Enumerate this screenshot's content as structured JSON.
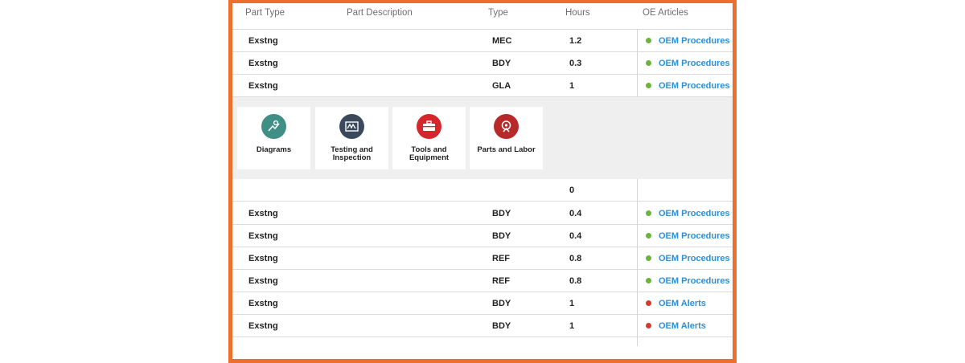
{
  "header": {
    "part_type": "Part Type",
    "part_description": "Part Description",
    "type": "Type",
    "hours": "Hours",
    "oe_articles": "OE Articles"
  },
  "rows_top": [
    {
      "part_type": "Exstng",
      "type": "MEC",
      "hours": "1.2",
      "article": "OEM Procedures",
      "status_color": "#6ab43a"
    },
    {
      "part_type": "Exstng",
      "type": "BDY",
      "hours": "0.3",
      "article": "OEM Procedures",
      "status_color": "#6ab43a"
    },
    {
      "part_type": "Exstng",
      "type": "GLA",
      "hours": "1",
      "article": "OEM Procedures",
      "status_color": "#6ab43a"
    }
  ],
  "cards": [
    {
      "label": "Diagrams",
      "icon": "diagram-icon",
      "color": "#3f8f86"
    },
    {
      "label": "Testing and Inspection",
      "icon": "testing-icon",
      "color": "#3a4a5c"
    },
    {
      "label": "Tools and Equipment",
      "icon": "toolbox-icon",
      "color": "#d6262b"
    },
    {
      "label": "Parts and Labor",
      "icon": "parts-labor-icon",
      "color": "#b82a2a"
    }
  ],
  "summary_row": {
    "hours": "0"
  },
  "rows_bottom": [
    {
      "part_type": "Exstng",
      "type": "BDY",
      "hours": "0.4",
      "article": "OEM Procedures",
      "status_color": "#6ab43a"
    },
    {
      "part_type": "Exstng",
      "type": "BDY",
      "hours": "0.4",
      "article": "OEM Procedures",
      "status_color": "#6ab43a"
    },
    {
      "part_type": "Exstng",
      "type": "REF",
      "hours": "0.8",
      "article": "OEM Procedures",
      "status_color": "#6ab43a"
    },
    {
      "part_type": "Exstng",
      "type": "REF",
      "hours": "0.8",
      "article": "OEM Procedures",
      "status_color": "#6ab43a"
    },
    {
      "part_type": "Exstng",
      "type": "BDY",
      "hours": "1",
      "article": "OEM Alerts",
      "status_color": "#d63a2f"
    },
    {
      "part_type": "Exstng",
      "type": "BDY",
      "hours": "1",
      "article": "OEM Alerts",
      "status_color": "#d63a2f"
    }
  ],
  "colors": {
    "frame": "#ee6f2d",
    "link": "#2f8fd3"
  }
}
